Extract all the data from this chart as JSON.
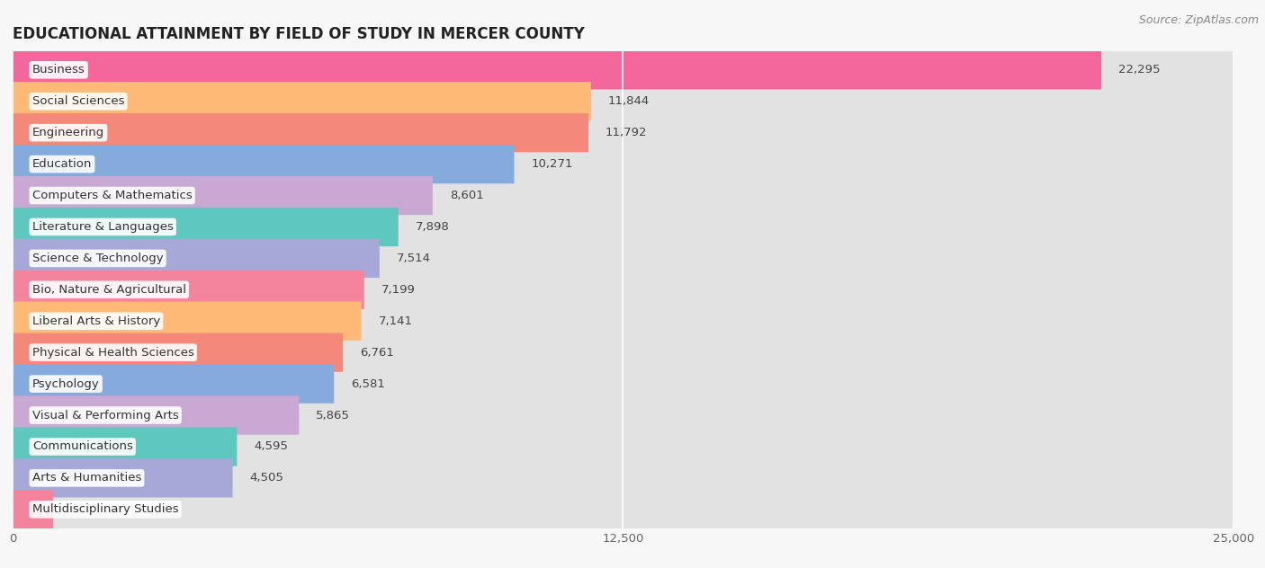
{
  "title": "EDUCATIONAL ATTAINMENT BY FIELD OF STUDY IN MERCER COUNTY",
  "source": "Source: ZipAtlas.com",
  "categories": [
    "Business",
    "Social Sciences",
    "Engineering",
    "Education",
    "Computers & Mathematics",
    "Literature & Languages",
    "Science & Technology",
    "Bio, Nature & Agricultural",
    "Liberal Arts & History",
    "Physical & Health Sciences",
    "Psychology",
    "Visual & Performing Arts",
    "Communications",
    "Arts & Humanities",
    "Multidisciplinary Studies"
  ],
  "values": [
    22295,
    11844,
    11792,
    10271,
    8601,
    7898,
    7514,
    7199,
    7141,
    6761,
    6581,
    5865,
    4595,
    4505,
    832
  ],
  "colors": [
    "#F4679D",
    "#FFBA78",
    "#F4897B",
    "#85AADC",
    "#C9A8D4",
    "#5FC8BE",
    "#A8A8D8",
    "#F4849D",
    "#FFBA78",
    "#F4897B",
    "#85AADC",
    "#C9A8D4",
    "#5FC8BE",
    "#A8A8D8",
    "#F4849D"
  ],
  "xlim": [
    0,
    25000
  ],
  "xticks": [
    0,
    12500,
    25000
  ],
  "background_color": "#f7f7f7",
  "bar_bg_color": "#e2e2e2",
  "title_fontsize": 12,
  "label_fontsize": 9.5,
  "value_fontsize": 9.5,
  "source_fontsize": 9
}
